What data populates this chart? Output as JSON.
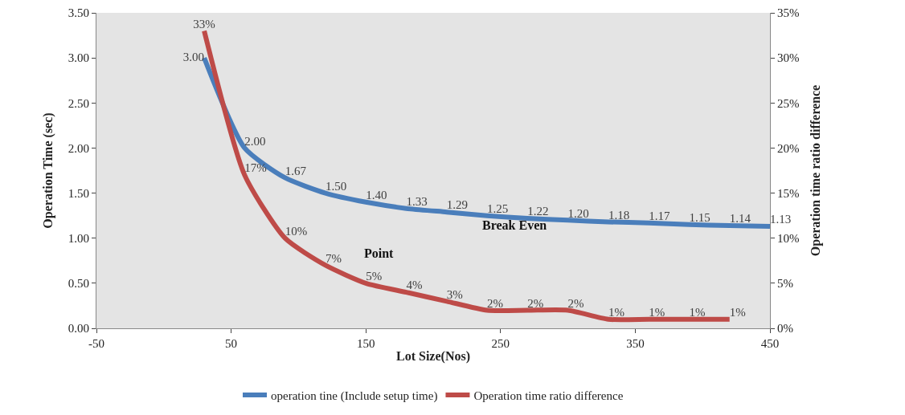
{
  "chart_data": {
    "type": "line",
    "xlabel": "Lot Size(Nos)",
    "ylabel": "Operation Time (sec)",
    "y2label": "Operation time ratio difference",
    "xlim": [
      -50,
      450
    ],
    "xticks": [
      -50,
      50,
      150,
      250,
      350,
      450
    ],
    "ylim": [
      0,
      3.5
    ],
    "yticks": [
      {
        "value": 0,
        "label": "0.00"
      },
      {
        "value": 0.5,
        "label": "0.50"
      },
      {
        "value": 1,
        "label": "1.00"
      },
      {
        "value": 1.5,
        "label": "1.50"
      },
      {
        "value": 2,
        "label": "2.00"
      },
      {
        "value": 2.5,
        "label": "2.50"
      },
      {
        "value": 3,
        "label": "3.00"
      },
      {
        "value": 3.5,
        "label": "3.50"
      }
    ],
    "y2lim": [
      0,
      35
    ],
    "y2ticks": [
      {
        "value": 0,
        "label": "0%"
      },
      {
        "value": 5,
        "label": "5%"
      },
      {
        "value": 10,
        "label": "10%"
      },
      {
        "value": 15,
        "label": "15%"
      },
      {
        "value": 20,
        "label": "20%"
      },
      {
        "value": 25,
        "label": "25%"
      },
      {
        "value": 30,
        "label": "30%"
      },
      {
        "value": 35,
        "label": "35%"
      }
    ],
    "series": [
      {
        "name": "operation tine (Include setup time)",
        "color": "#4a7ebb",
        "x": [
          30,
          60,
          90,
          120,
          150,
          180,
          210,
          240,
          270,
          300,
          330,
          360,
          390,
          420,
          450
        ],
        "values": [
          3.0,
          2.0,
          1.67,
          1.5,
          1.4,
          1.33,
          1.29,
          1.25,
          1.22,
          1.2,
          1.18,
          1.17,
          1.15,
          1.14,
          1.13
        ],
        "value_labels": [
          "3.00",
          "2.00",
          "1.67",
          "1.50",
          "1.40",
          "1.33",
          "1.29",
          "1.25",
          "1.22",
          "1.20",
          "1.18",
          "1.17",
          "1.15",
          "1.14",
          "1.13"
        ]
      },
      {
        "name": "Operation time ratio difference",
        "color": "#be4b48",
        "axis": "y2",
        "x": [
          30,
          60,
          90,
          120,
          150,
          180,
          210,
          240,
          270,
          300,
          330,
          360,
          390,
          420
        ],
        "values": [
          33,
          17,
          10,
          7,
          5,
          4,
          3,
          2,
          2,
          2,
          1,
          1,
          1,
          1
        ],
        "value_labels": [
          "33%",
          "17%",
          "10%",
          "7%",
          "5%",
          "4%",
          "3%",
          "2%",
          "2%",
          "2%",
          "1%",
          "1%",
          "1%",
          "1%"
        ]
      }
    ],
    "annotations": [
      "Break Even",
      "Point"
    ],
    "legend": "bottom",
    "grid": false,
    "marker": "none",
    "line_style": "solid"
  }
}
